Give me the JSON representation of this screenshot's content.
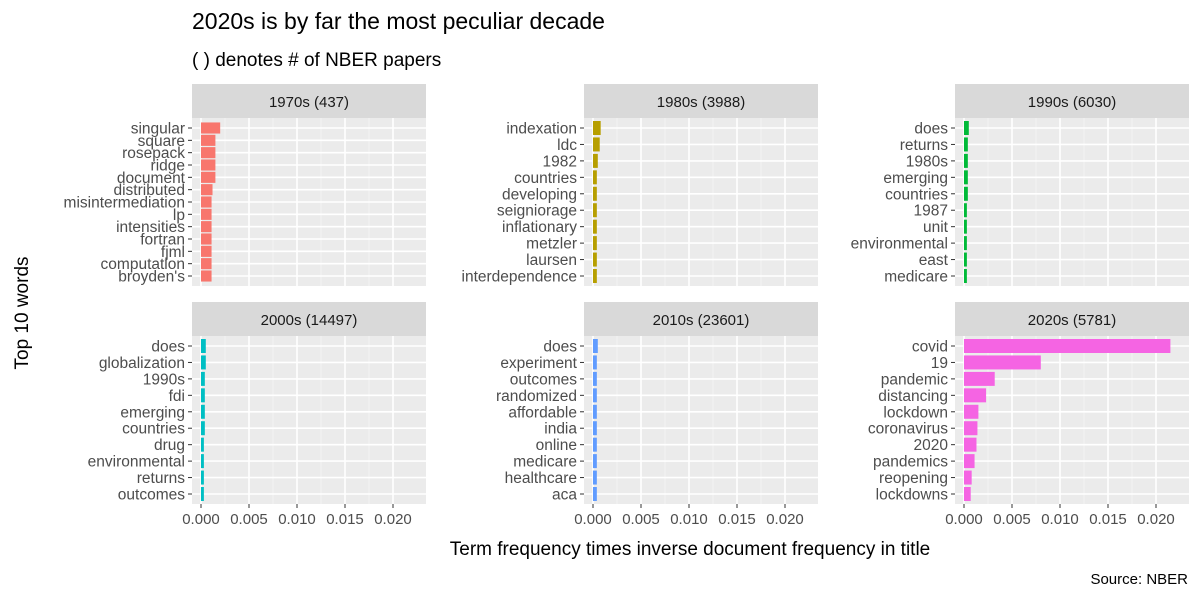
{
  "chart_data": {
    "type": "bar",
    "orientation": "horizontal",
    "title": "2020s is by far the most peculiar decade",
    "subtitle": "( ) denotes # of NBER papers",
    "xlabel": "Term frequency times inverse document frequency in title",
    "ylabel": "Top 10 words",
    "caption": "Source: NBER",
    "xlim": [
      0,
      0.0225
    ],
    "xticks": [
      "0.000",
      "0.005",
      "0.010",
      "0.015",
      "0.020"
    ],
    "grid": true,
    "legend": "none",
    "panels": [
      {
        "strip": "1970s (437)",
        "color": "#F8766D",
        "words": [
          "singular",
          "square",
          "rosepack",
          "ridge",
          "document",
          "distributed",
          "misintermediation",
          "lp",
          "intensities",
          "fortran",
          "fjml",
          "computation",
          "broyden's"
        ],
        "values": [
          0.002,
          0.0015,
          0.0015,
          0.0015,
          0.0015,
          0.0012,
          0.0011,
          0.0011,
          0.0011,
          0.0011,
          0.0011,
          0.0011,
          0.0011
        ]
      },
      {
        "strip": "1980s (3988)",
        "color": "#B79F00",
        "words": [
          "indexation",
          "ldc",
          "1982",
          "countries",
          "developing",
          "seigniorage",
          "inflationary",
          "metzler",
          "laursen",
          "interdependence"
        ],
        "values": [
          0.0008,
          0.0007,
          0.0005,
          0.0004,
          0.0004,
          0.0004,
          0.0004,
          0.0004,
          0.0004,
          0.0004
        ]
      },
      {
        "strip": "1990s (6030)",
        "color": "#00BA38",
        "words": [
          "does",
          "returns",
          "1980s",
          "emerging",
          "countries",
          "1987",
          "unit",
          "environmental",
          "east",
          "medicare"
        ],
        "values": [
          0.0005,
          0.0004,
          0.0004,
          0.0004,
          0.0004,
          0.0003,
          0.0003,
          0.0003,
          0.0003,
          0.0003
        ]
      },
      {
        "strip": "2000s (14497)",
        "color": "#00BFC4",
        "words": [
          "does",
          "globalization",
          "1990s",
          "fdi",
          "emerging",
          "countries",
          "drug",
          "environmental",
          "returns",
          "outcomes"
        ],
        "values": [
          0.0005,
          0.0005,
          0.0004,
          0.0004,
          0.0004,
          0.0004,
          0.0003,
          0.0003,
          0.0003,
          0.0003
        ]
      },
      {
        "strip": "2010s (23601)",
        "color": "#619CFF",
        "words": [
          "does",
          "experiment",
          "outcomes",
          "randomized",
          "affordable",
          "india",
          "online",
          "medicare",
          "healthcare",
          "aca"
        ],
        "values": [
          0.0005,
          0.0004,
          0.0004,
          0.0004,
          0.0004,
          0.0004,
          0.0004,
          0.0004,
          0.0004,
          0.0004
        ]
      },
      {
        "strip": "2020s (5781)",
        "color": "#F564E3",
        "words": [
          "covid",
          "19",
          "pandemic",
          "distancing",
          "lockdown",
          "coronavirus",
          "2020",
          "pandemics",
          "reopening",
          "lockdowns"
        ],
        "values": [
          0.0215,
          0.008,
          0.0032,
          0.0023,
          0.0015,
          0.0014,
          0.0013,
          0.0011,
          0.0008,
          0.0007
        ]
      }
    ]
  }
}
